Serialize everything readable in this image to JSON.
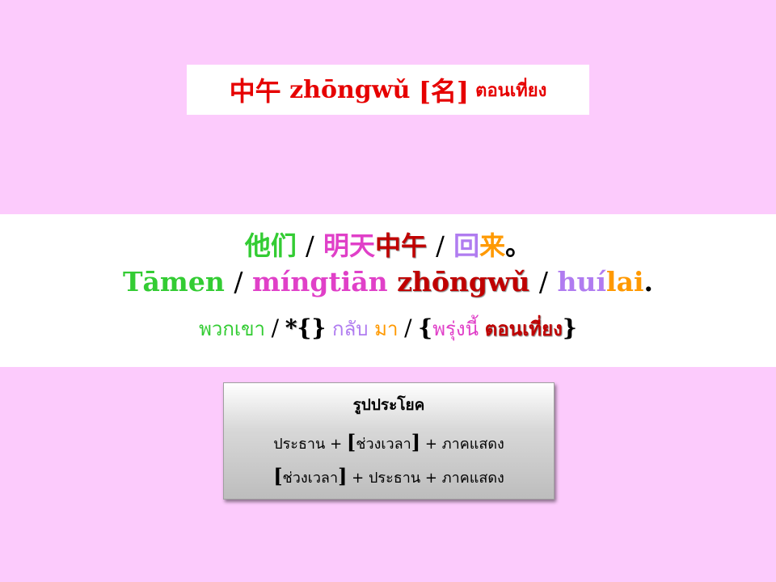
{
  "title": {
    "hanzi": "中午",
    "pinyin": "zhōngwǔ",
    "pos": "[名]",
    "thai": "ตอนเที่ยง"
  },
  "example": {
    "hanzi": {
      "w1": "他们",
      "s1": "/",
      "w2a": "明天",
      "w2b": "中午",
      "s2": "/",
      "w3a": "回",
      "w3b": "来",
      "end": "。"
    },
    "pinyin": {
      "w1": "Tāmen",
      "s1": "/",
      "w2a": "míngtiān",
      "w2b": "zhōngwǔ",
      "s2": "/",
      "w3a": "huí",
      "w3b": "lai",
      "end": "."
    },
    "thai": {
      "w1": "พวกเขา",
      "s1": "/",
      "star": "*",
      "empty_braces": "{}",
      "w3a": "กลับ",
      "w3b": "มา",
      "s2": "/",
      "open": "{",
      "w2a": "พรุ่งนี้",
      "w2b": "ตอนเที่ยง",
      "close": "}"
    }
  },
  "pattern": {
    "title": "รูปประโยค",
    "row1": {
      "a": "ประธาน",
      "plus1": "+",
      "bo": "[",
      "mid": "ช่วงเวลา",
      "bc": "]",
      "plus2": "+",
      "b": "ภาคแสดง"
    },
    "row2": {
      "bo": "[",
      "mid": "ช่วงเวลา",
      "bc": "]",
      "plus1": "+",
      "a": "ประธาน",
      "plus2": "+",
      "b": "ภาคแสดง"
    }
  },
  "colors": {
    "background": "#fccbfc",
    "subject": "#33cc33",
    "time": "#e040c8",
    "keyword": "#e60000",
    "verb": "#b07cf0",
    "complement": "#ff9900"
  }
}
